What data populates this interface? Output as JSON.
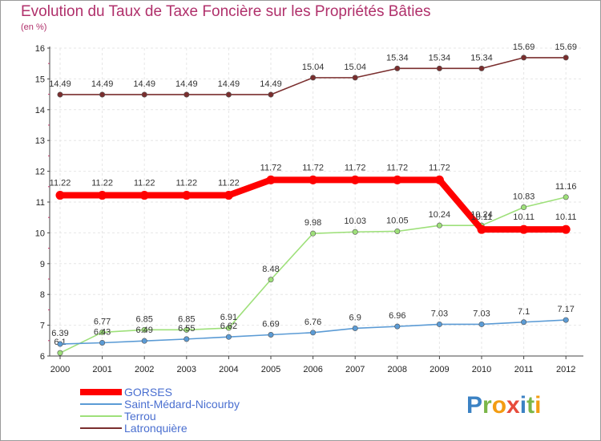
{
  "header": {
    "title": "Evolution du Taux de Taxe Foncière sur les Propriétés Bâties",
    "unit": "(en %)"
  },
  "logo": {
    "text": "Proxiti",
    "letters": [
      {
        "ch": "P",
        "color": "#3b82c4"
      },
      {
        "ch": "r",
        "color": "#7ab648"
      },
      {
        "ch": "o",
        "color": "#f39c12"
      },
      {
        "ch": "x",
        "color": "#e74c3c"
      },
      {
        "ch": "i",
        "color": "#3b82c4"
      },
      {
        "ch": "t",
        "color": "#7ab648"
      },
      {
        "ch": "i",
        "color": "#f39c12"
      }
    ]
  },
  "chart_data": {
    "type": "line",
    "title": "Evolution du Taux de Taxe Foncière sur les Propriétés Bâties",
    "ylabel": "(en %)",
    "xlabel": "",
    "ylim": [
      6,
      16
    ],
    "yticks": [
      6,
      7,
      8,
      9,
      10,
      11,
      12,
      13,
      14,
      15,
      16
    ],
    "x": [
      "2000",
      "2001",
      "2002",
      "2003",
      "2004",
      "2005",
      "2006",
      "2007",
      "2008",
      "2009",
      "2010",
      "2011",
      "2012"
    ],
    "legend_position": "bottom-left",
    "series": [
      {
        "name": "GORSES",
        "color": "#ff0000",
        "values": [
          11.22,
          11.22,
          11.22,
          11.22,
          11.22,
          11.72,
          11.72,
          11.72,
          11.72,
          11.72,
          10.11,
          10.11,
          10.11
        ],
        "labels": [
          "11.22",
          "11.22",
          "11.22",
          "11.22",
          "11.22",
          "11.72",
          "11.72",
          "11.72",
          "11.72",
          "11.72",
          "10.11",
          "10.11",
          "10.11"
        ]
      },
      {
        "name": "Saint-Médard-Nicourby",
        "color": "#5b9bd5",
        "values": [
          6.39,
          6.43,
          6.49,
          6.55,
          6.62,
          6.69,
          6.76,
          6.9,
          6.96,
          7.03,
          7.03,
          7.1,
          7.17
        ],
        "labels": [
          "6.39",
          "6.43",
          "6.49",
          "6.55",
          "6.62",
          "6.69",
          "6.76",
          "6.9",
          "6.96",
          "7.03",
          "7.03",
          "7.1",
          "7.17"
        ]
      },
      {
        "name": "Terrou",
        "color": "#9ee07a",
        "values": [
          6.1,
          6.77,
          6.85,
          6.85,
          6.91,
          8.48,
          9.98,
          10.03,
          10.05,
          10.24,
          10.24,
          10.83,
          11.16
        ],
        "labels": [
          "6.1",
          "6.77",
          "6.85",
          "6.85",
          "6.91",
          "8.48",
          "9.98",
          "10.03",
          "10.05",
          "10.24",
          "10.24",
          "10.83",
          "11.16"
        ]
      },
      {
        "name": "Latronquière",
        "color": "#7a2e2e",
        "values": [
          14.49,
          14.49,
          14.49,
          14.49,
          14.49,
          14.49,
          15.04,
          15.04,
          15.34,
          15.34,
          15.34,
          15.69,
          15.69
        ],
        "labels": [
          "14.49",
          "14.49",
          "14.49",
          "14.49",
          "14.49",
          "14.49",
          "15.04",
          "15.04",
          "15.34",
          "15.34",
          "15.34",
          "15.69",
          "15.69"
        ]
      }
    ]
  }
}
